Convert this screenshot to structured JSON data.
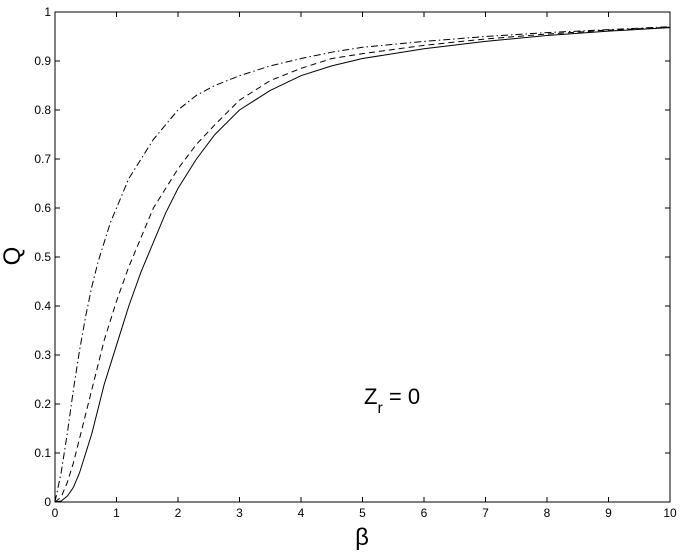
{
  "chart_data": {
    "type": "line",
    "title": "",
    "xlabel": "β",
    "ylabel": "Q",
    "xlim": [
      0,
      10
    ],
    "ylim": [
      0,
      1
    ],
    "xticks": [
      0,
      1,
      2,
      3,
      4,
      5,
      6,
      7,
      8,
      9,
      10
    ],
    "yticks": [
      0,
      0.1,
      0.2,
      0.3,
      0.4,
      0.5,
      0.6,
      0.7,
      0.8,
      0.9,
      1
    ],
    "grid": false,
    "legend": "none",
    "annotation": {
      "main": "Z",
      "sub": "r",
      "rest": " = 0"
    },
    "series": [
      {
        "style": "solid",
        "x": [
          0,
          0.1,
          0.2,
          0.3,
          0.4,
          0.5,
          0.6,
          0.7,
          0.8,
          0.9,
          1.0,
          1.2,
          1.4,
          1.6,
          1.8,
          2.0,
          2.3,
          2.6,
          3.0,
          3.5,
          4.0,
          4.5,
          5.0,
          6.0,
          7.0,
          8.0,
          9.0,
          10.0
        ],
        "y": [
          0,
          0.002,
          0.012,
          0.03,
          0.06,
          0.1,
          0.14,
          0.19,
          0.24,
          0.28,
          0.32,
          0.4,
          0.47,
          0.53,
          0.59,
          0.64,
          0.7,
          0.75,
          0.8,
          0.84,
          0.87,
          0.89,
          0.905,
          0.925,
          0.94,
          0.952,
          0.961,
          0.968
        ]
      },
      {
        "style": "dashed",
        "x": [
          0,
          0.1,
          0.2,
          0.3,
          0.4,
          0.5,
          0.6,
          0.7,
          0.8,
          0.9,
          1.0,
          1.2,
          1.4,
          1.6,
          1.8,
          2.0,
          2.3,
          2.6,
          3.0,
          3.5,
          4.0,
          4.5,
          5.0,
          6.0,
          7.0,
          8.0,
          9.0,
          10.0
        ],
        "y": [
          0,
          0.01,
          0.04,
          0.08,
          0.13,
          0.18,
          0.23,
          0.28,
          0.33,
          0.37,
          0.41,
          0.48,
          0.54,
          0.6,
          0.64,
          0.68,
          0.73,
          0.77,
          0.82,
          0.86,
          0.885,
          0.905,
          0.915,
          0.932,
          0.945,
          0.955,
          0.963,
          0.969
        ]
      },
      {
        "style": "dash-dot",
        "x": [
          0,
          0.1,
          0.2,
          0.3,
          0.4,
          0.5,
          0.6,
          0.7,
          0.8,
          0.9,
          1.0,
          1.2,
          1.4,
          1.6,
          1.8,
          2.0,
          2.3,
          2.6,
          3.0,
          3.5,
          4.0,
          4.5,
          5.0,
          6.0,
          7.0,
          8.0,
          9.0,
          10.0
        ],
        "y": [
          0,
          0.06,
          0.14,
          0.23,
          0.31,
          0.38,
          0.44,
          0.49,
          0.53,
          0.57,
          0.6,
          0.66,
          0.7,
          0.74,
          0.77,
          0.8,
          0.83,
          0.85,
          0.87,
          0.89,
          0.905,
          0.918,
          0.928,
          0.94,
          0.95,
          0.958,
          0.964,
          0.97
        ]
      }
    ]
  }
}
